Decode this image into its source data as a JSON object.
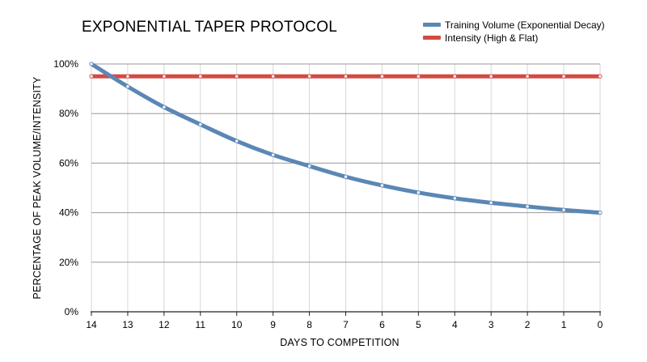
{
  "chart_data": {
    "type": "line",
    "title": "EXPONENTIAL TAPER PROTOCOL",
    "xlabel": "DAYS TO COMPETITION",
    "ylabel": "PERCENTAGE OF PEAK VOLUME/INTENSITY",
    "x": [
      14,
      13,
      12,
      11,
      10,
      9,
      8,
      7,
      6,
      5,
      4,
      3,
      2,
      1,
      0
    ],
    "x_reversed": true,
    "ylim": [
      0,
      100
    ],
    "yticks": [
      "0%",
      "20%",
      "40%",
      "60%",
      "80%",
      "100%"
    ],
    "grid": true,
    "legend_position": "top-right",
    "series": [
      {
        "name": "Training Volume (Exponential Decay)",
        "color": "#5b87b5",
        "values": [
          100,
          90.9,
          82.6,
          75.6,
          68.9,
          63.3,
          58.8,
          54.5,
          51.0,
          48.1,
          45.8,
          44.0,
          42.5,
          41.1,
          40.0
        ]
      },
      {
        "name": "Intensity (High & Flat)",
        "color": "#d24b43",
        "values": [
          95,
          95,
          95,
          95,
          95,
          95,
          95,
          95,
          95,
          95,
          95,
          95,
          95,
          95,
          95
        ]
      }
    ]
  }
}
